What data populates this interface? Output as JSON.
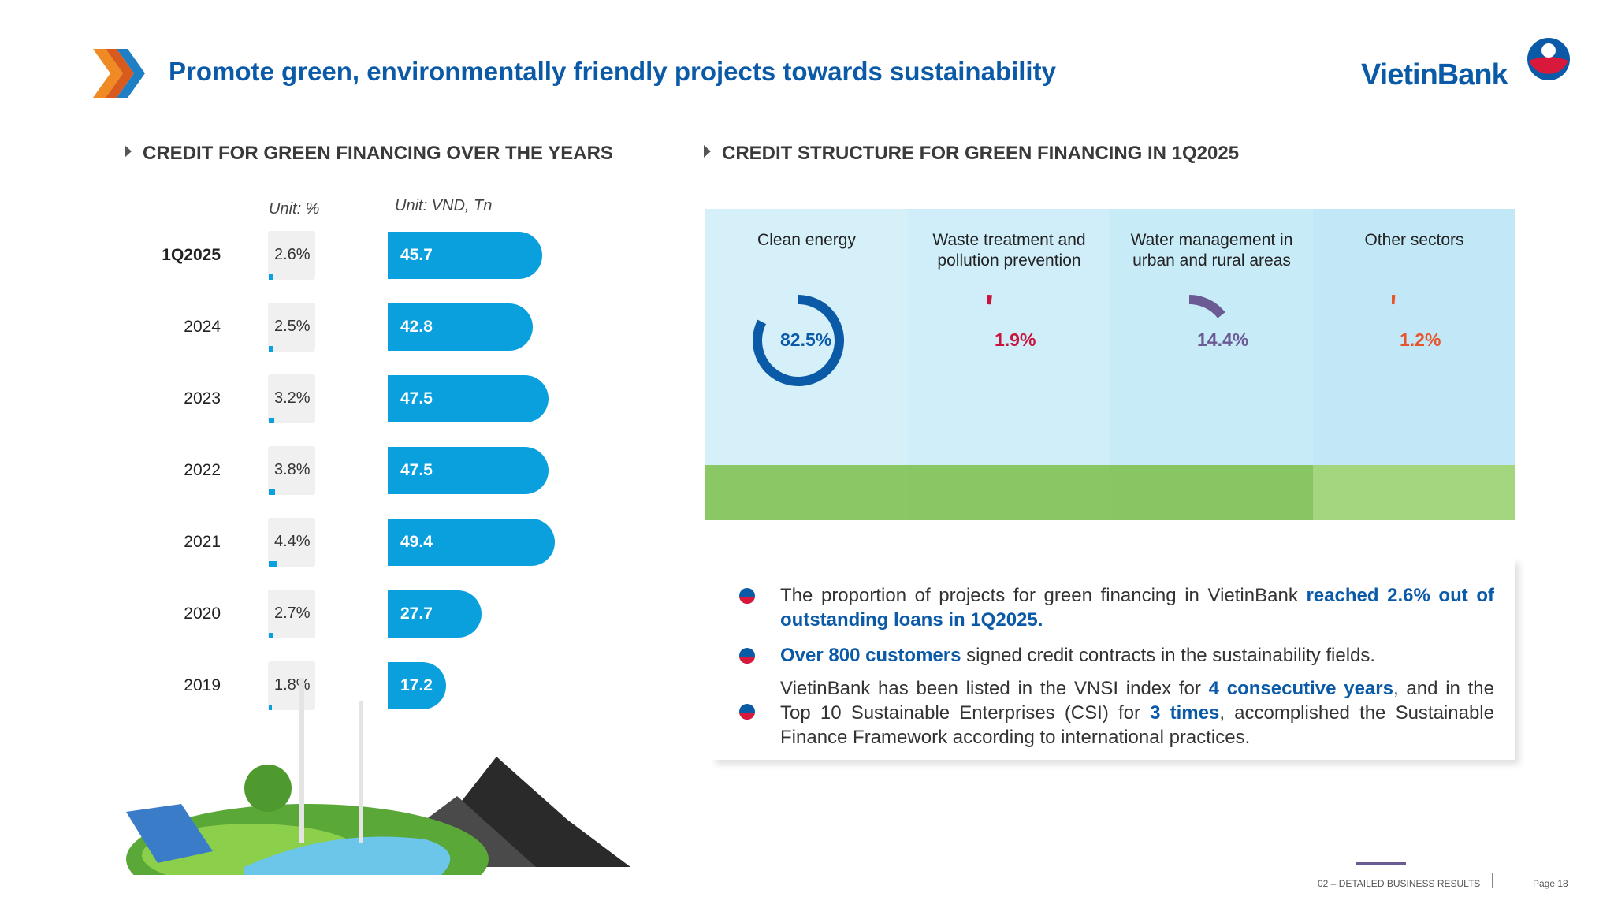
{
  "header": {
    "title": "Promote green, environmentally friendly projects towards sustainability",
    "logo_text": "VietinBank"
  },
  "left_section": {
    "title": "CREDIT FOR GREEN FINANCING OVER THE YEARS",
    "unit_pct": "Unit: %",
    "unit_vnd": "Unit: VND,  Tn"
  },
  "right_section": {
    "title": "CREDIT STRUCTURE FOR GREEN FINANCING IN 1Q2025"
  },
  "chart_data": [
    {
      "type": "bar",
      "orientation": "horizontal",
      "categories": [
        "1Q2025",
        "2024",
        "2023",
        "2022",
        "2021",
        "2020",
        "2019"
      ],
      "series": [
        {
          "name": "Unit: VND,  Tn",
          "values": [
            45.7,
            42.8,
            47.5,
            47.5,
            49.4,
            27.7,
            17.2
          ]
        },
        {
          "name": "Unit: %",
          "values": [
            2.6,
            2.5,
            3.2,
            3.8,
            4.4,
            2.7,
            1.8
          ]
        }
      ],
      "value_labels": [
        "45.7",
        "42.8",
        "47.5",
        "47.5",
        "49.4",
        "27.7",
        "17.2"
      ],
      "pct_labels": [
        "2.6%",
        "2.5%",
        "3.2%",
        "3.8%",
        "4.4%",
        "2.7%",
        "1.8%"
      ],
      "title": "CREDIT FOR GREEN FINANCING OVER THE YEARS"
    },
    {
      "type": "pie",
      "categories": [
        "Clean energy",
        "Waste treatment and pollution prevention",
        "Water management in urban and rural areas",
        "Other sectors"
      ],
      "values": [
        82.5,
        1.9,
        14.4,
        1.2
      ],
      "labels": [
        "82.5%",
        "1.9%",
        "14.4%",
        "1.2%"
      ],
      "colors": [
        "#0b5aa8",
        "#c8143c",
        "#6b5b95",
        "#e8552a"
      ],
      "title": "CREDIT STRUCTURE FOR GREEN FINANCING IN 1Q2025"
    }
  ],
  "panels": [
    {
      "title_line1": "Clean energy",
      "title_line2": "",
      "pct": "82.5%",
      "color": "#0b5aa8"
    },
    {
      "title_line1": "Waste treatment and",
      "title_line2": "pollution prevention",
      "pct": "1.9%",
      "color": "#c8143c"
    },
    {
      "title_line1": "Water management in",
      "title_line2": "urban and rural areas",
      "pct": "14.4%",
      "color": "#6b5b95"
    },
    {
      "title_line1": "Other sectors",
      "title_line2": "",
      "pct": "1.2%",
      "color": "#e8552a"
    }
  ],
  "bullets": [
    {
      "text_a": "The proportion of projects for green financing in  VietinBank ",
      "bold_a": "reached 2.6% out of outstanding loans in 1Q2025.",
      "text_b": "",
      "bold_b": "",
      "text_c": ""
    },
    {
      "text_a": "",
      "bold_a": "Over 800 customers",
      "text_b": " signed credit contracts in the sustainability fields.",
      "bold_b": "",
      "text_c": ""
    },
    {
      "text_a": "VietinBank has been listed in the VNSI index for ",
      "bold_a": "4 consecutive years",
      "text_b": ", and in the Top 10 Sustainable Enterprises (CSI) for ",
      "bold_b": "3 times",
      "text_c": ", accomplished the Sustainable Finance Framework according to international practices."
    }
  ],
  "footer": {
    "section": "02 – DETAILED BUSINESS RESULTS",
    "page": "Page 18"
  }
}
